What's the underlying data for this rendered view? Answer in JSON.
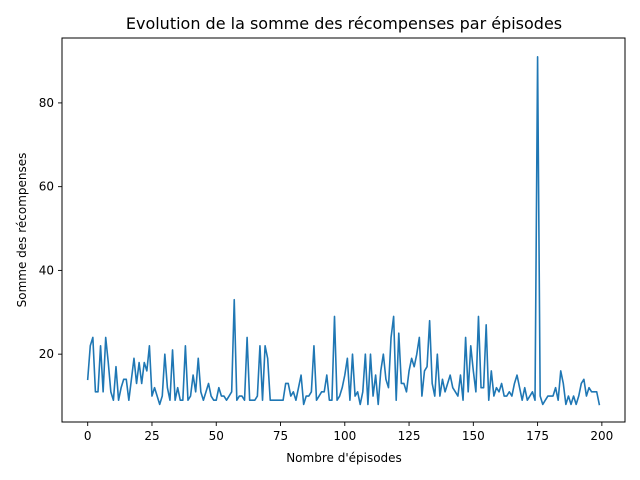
{
  "chart_data": {
    "type": "line",
    "title": "Evolution de la somme des récompenses par épisodes",
    "xlabel": "Nombre d'épisodes",
    "ylabel": "Somme des récompenses",
    "xlim": [
      -10,
      209
    ],
    "ylim": [
      3.8,
      95.5
    ],
    "xticks": [
      0,
      25,
      50,
      75,
      100,
      125,
      150,
      175,
      200
    ],
    "yticks": [
      20,
      40,
      60,
      80
    ],
    "grid": false,
    "legend": null,
    "series": [
      {
        "color": "#1f77b4",
        "x": [
          0,
          1,
          2,
          3,
          4,
          5,
          6,
          7,
          8,
          9,
          10,
          11,
          12,
          13,
          14,
          15,
          16,
          17,
          18,
          19,
          20,
          21,
          22,
          23,
          24,
          25,
          26,
          27,
          28,
          29,
          30,
          31,
          32,
          33,
          34,
          35,
          36,
          37,
          38,
          39,
          40,
          41,
          42,
          43,
          44,
          45,
          46,
          47,
          48,
          49,
          50,
          51,
          52,
          53,
          54,
          55,
          56,
          57,
          58,
          59,
          60,
          61,
          62,
          63,
          64,
          65,
          66,
          67,
          68,
          69,
          70,
          71,
          72,
          73,
          74,
          75,
          76,
          77,
          78,
          79,
          80,
          81,
          82,
          83,
          84,
          85,
          86,
          87,
          88,
          89,
          90,
          91,
          92,
          93,
          94,
          95,
          96,
          97,
          98,
          99,
          100,
          101,
          102,
          103,
          104,
          105,
          106,
          107,
          108,
          109,
          110,
          111,
          112,
          113,
          114,
          115,
          116,
          117,
          118,
          119,
          120,
          121,
          122,
          123,
          124,
          125,
          126,
          127,
          128,
          129,
          130,
          131,
          132,
          133,
          134,
          135,
          136,
          137,
          138,
          139,
          140,
          141,
          142,
          143,
          144,
          145,
          146,
          147,
          148,
          149,
          150,
          151,
          152,
          153,
          154,
          155,
          156,
          157,
          158,
          159,
          160,
          161,
          162,
          163,
          164,
          165,
          166,
          167,
          168,
          169,
          170,
          171,
          172,
          173,
          174,
          175,
          176,
          177,
          178,
          179,
          180,
          181,
          182,
          183,
          184,
          185,
          186,
          187,
          188,
          189,
          190,
          191,
          192,
          193,
          194,
          195,
          196,
          197,
          198,
          199
        ],
        "values": [
          14,
          22,
          24,
          11,
          11,
          22,
          11,
          24,
          18,
          11,
          9,
          17,
          9,
          12,
          14,
          14,
          9,
          14,
          19,
          13,
          18,
          13,
          18,
          16,
          22,
          10,
          12,
          10,
          8,
          10,
          20,
          12,
          9,
          21,
          9,
          12,
          9,
          9,
          22,
          9,
          10,
          15,
          11,
          19,
          11,
          9,
          11,
          13,
          10,
          9,
          9,
          12,
          10,
          10,
          9,
          10,
          11,
          33,
          9,
          10,
          10,
          9,
          24,
          9,
          9,
          9,
          10,
          22,
          9,
          22,
          19,
          9,
          9,
          9,
          9,
          9,
          9,
          13,
          13,
          10,
          11,
          9,
          12,
          15,
          8,
          10,
          10,
          11,
          22,
          9,
          10,
          11,
          11,
          15,
          9,
          9,
          29,
          9,
          10,
          12,
          15,
          19,
          9,
          20,
          10,
          11,
          8,
          11,
          20,
          8,
          20,
          10,
          15,
          8,
          16,
          20,
          14,
          12,
          24,
          29,
          9,
          25,
          13,
          13,
          11,
          16,
          19,
          17,
          20,
          24,
          10,
          16,
          17,
          28,
          13,
          10,
          20,
          10,
          14,
          11,
          13,
          15,
          12,
          11,
          10,
          15,
          9,
          24,
          11,
          22,
          16,
          11,
          29,
          12,
          12,
          27,
          9,
          16,
          10,
          12,
          11,
          13,
          10,
          10,
          11,
          10,
          13,
          15,
          12,
          9,
          12,
          9,
          10,
          11,
          9,
          91,
          10,
          8,
          9,
          10,
          10,
          10,
          12,
          9,
          16,
          13,
          8,
          10,
          8,
          10,
          8,
          10,
          13,
          14,
          10,
          12,
          11,
          11,
          11,
          8
        ]
      }
    ]
  }
}
